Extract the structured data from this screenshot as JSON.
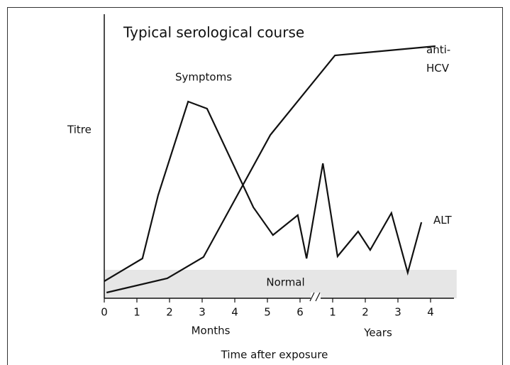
{
  "chart_data": {
    "type": "line",
    "title": "Typical serological course",
    "ylabel": "Titre",
    "xlabel": "Time after exposure",
    "x_segment_labels": [
      "Months",
      "Years"
    ],
    "annotations": [
      "Symptoms"
    ],
    "normal_range": {
      "label": "Normal",
      "values": [
        0,
        10
      ]
    },
    "xlim": [
      0,
      10.8
    ],
    "ylim": [
      0,
      100
    ],
    "xticks": [
      0,
      1,
      2,
      3,
      4,
      5,
      6,
      {
        "value": 7,
        "label": "1"
      },
      {
        "value": 8,
        "label": "2"
      },
      {
        "value": 9,
        "label": "3"
      },
      {
        "value": 10,
        "label": "4"
      }
    ],
    "series": [
      {
        "name": "ALT",
        "color": "#111111",
        "x": [
          0,
          1.17,
          1.65,
          2.57,
          3.15,
          4.57,
          5.17,
          5.93,
          6.2,
          6.7,
          7.15,
          7.78,
          8.15,
          8.8,
          9.3,
          9.72
        ],
        "values": [
          6,
          14,
          36.25,
          69.25,
          66.75,
          32,
          22.25,
          29.25,
          14,
          47.5,
          14.75,
          23.5,
          17,
          30,
          9,
          26.75
        ]
      },
      {
        "name": "anti-HCV",
        "color": "#111111",
        "x": [
          0.07,
          1.93,
          3.04,
          5.09,
          7.07,
          10.15
        ],
        "values": [
          2,
          7,
          14.5,
          57.5,
          85.5,
          88.75
        ]
      }
    ]
  }
}
